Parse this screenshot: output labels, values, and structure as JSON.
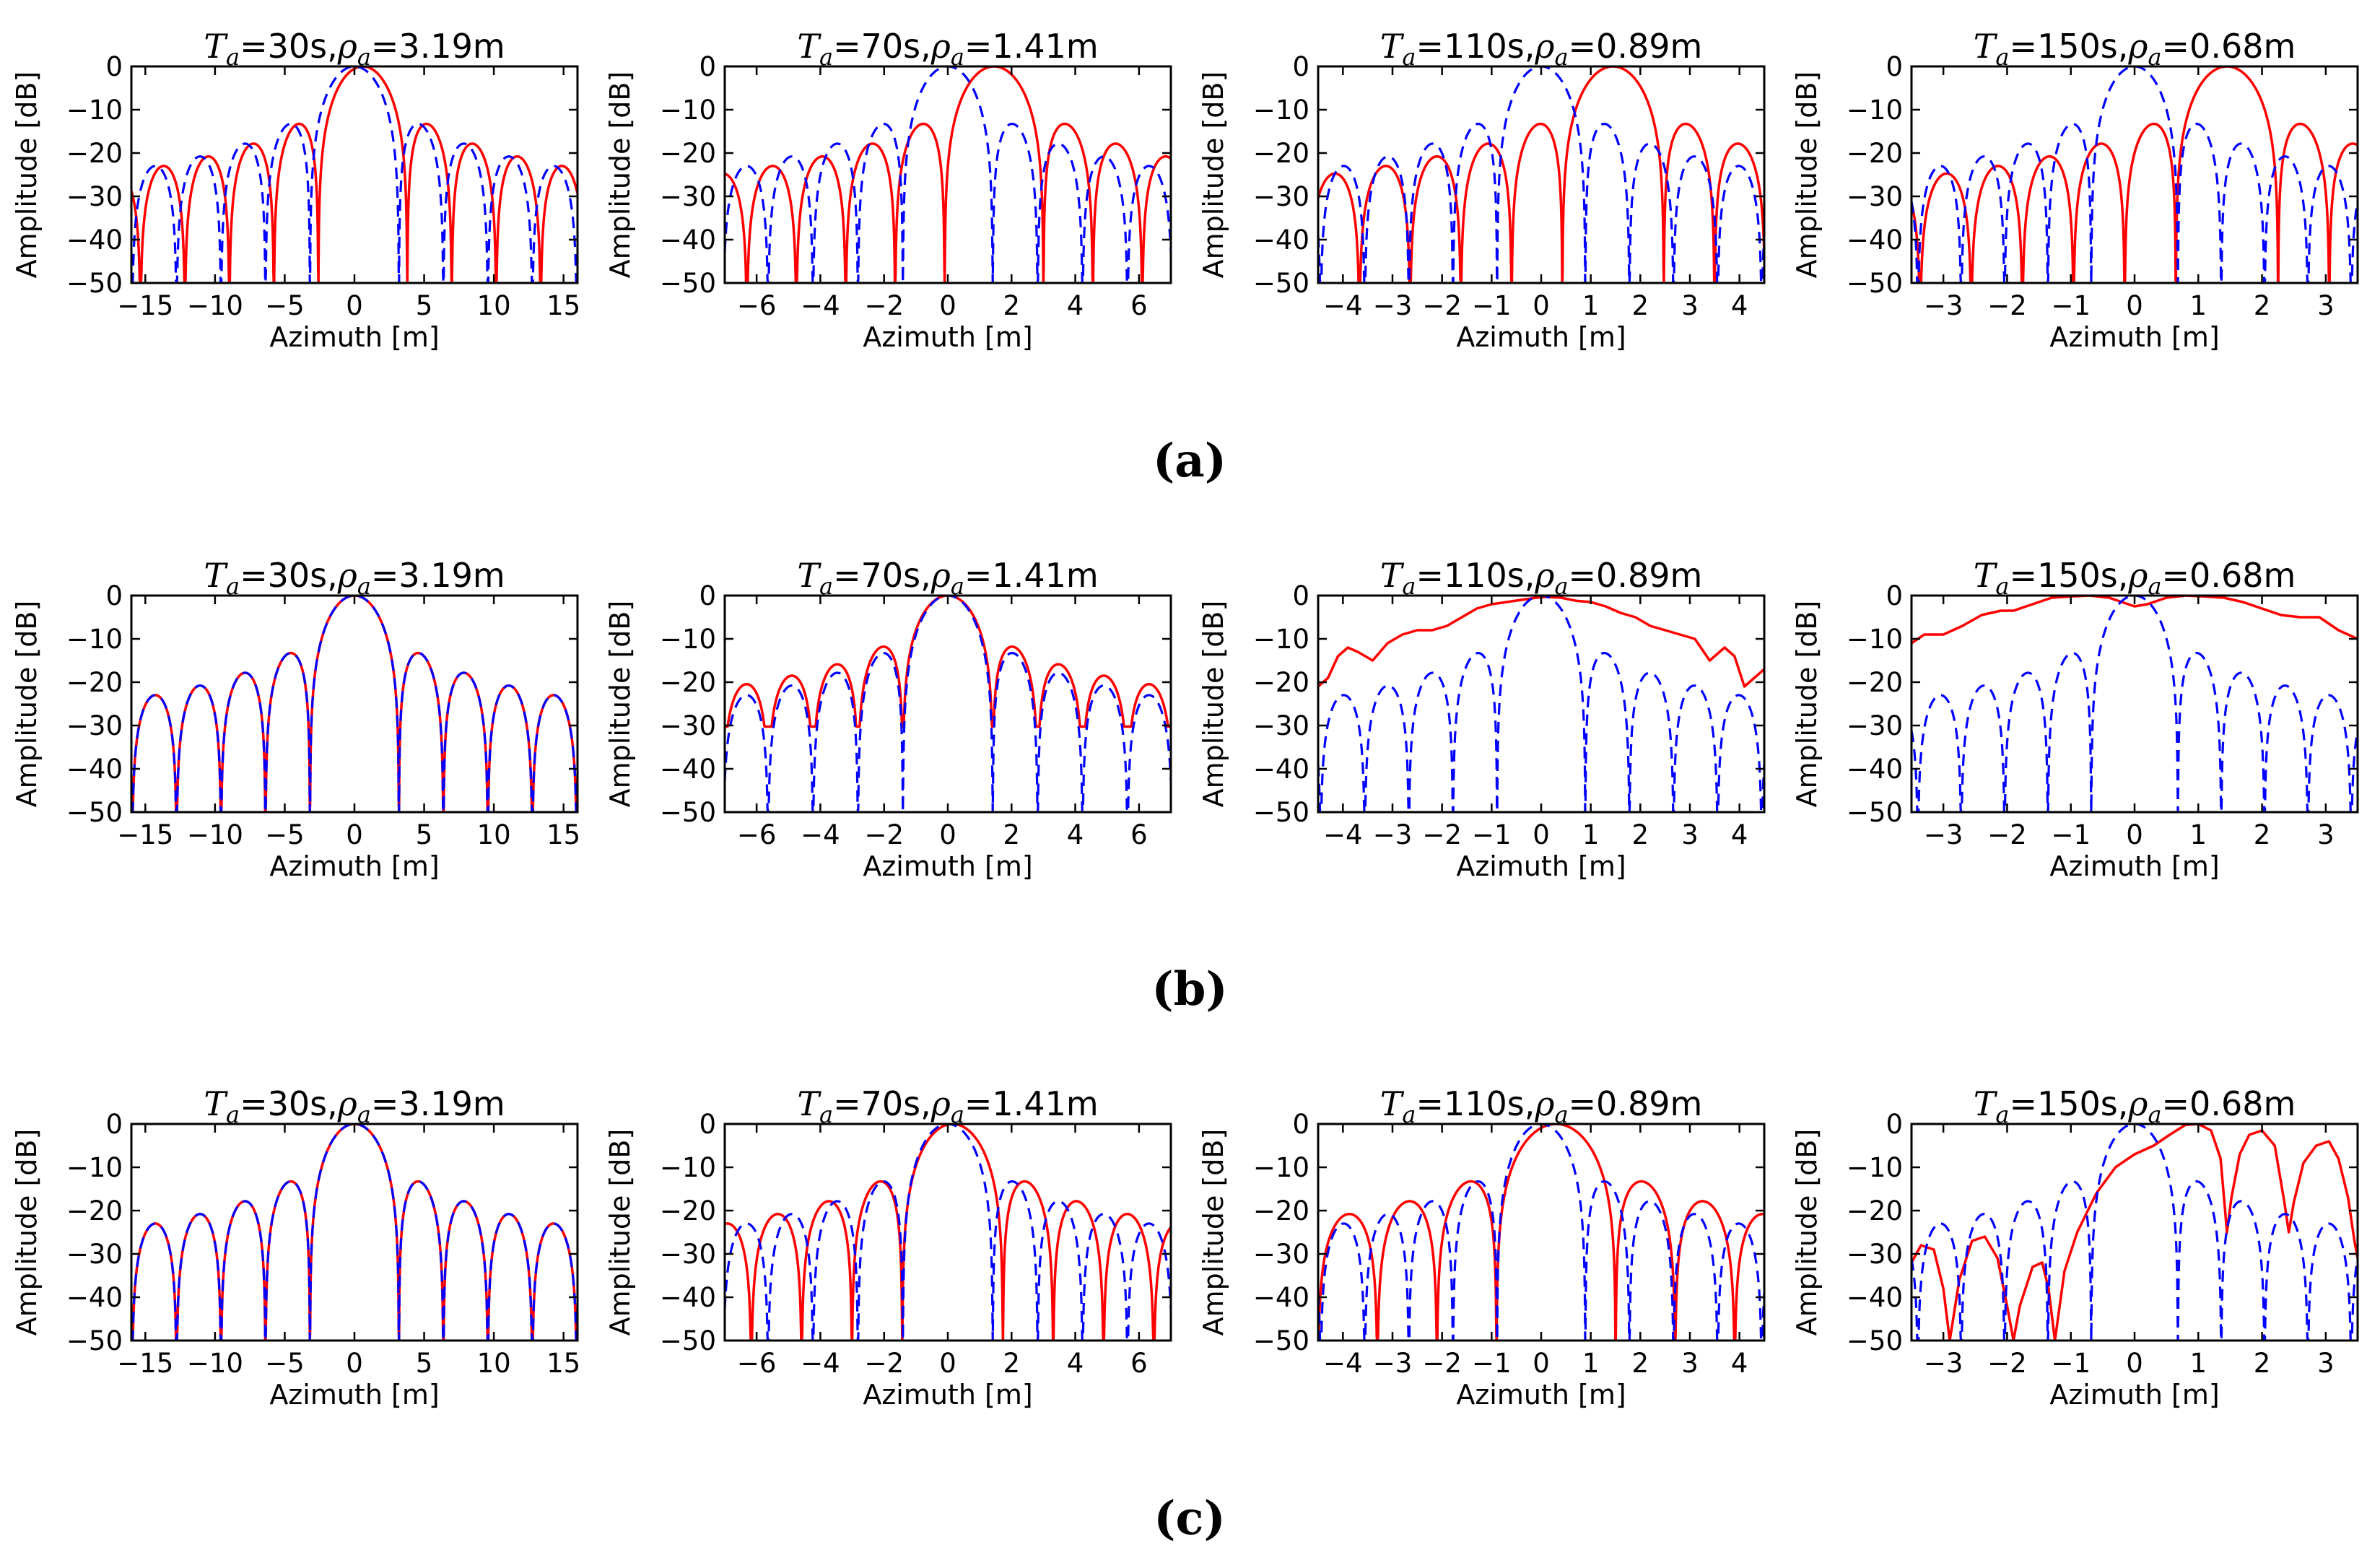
{
  "figure": {
    "row_labels": [
      "(a)",
      "(b)",
      "(c)"
    ],
    "title_symbols": {
      "T": "T",
      "T_sub": "a",
      "rho": "ρ",
      "rho_sub": "a"
    }
  },
  "colors": {
    "solid_series": "#ff0000",
    "dashed_series": "#0000ff",
    "axes": "#000000"
  },
  "chart_data": [
    {
      "panel": "a1",
      "row": "(a)",
      "type": "line",
      "title": "Ta=30s,ρa=3.19m",
      "Ta": "30s",
      "rho": "3.19m",
      "xlabel": "Azimuth [m]",
      "ylabel": "Amplitude [dB]",
      "xlim": [
        -16,
        16
      ],
      "ylim": [
        -50,
        0
      ],
      "xticks": [
        -15,
        -10,
        -5,
        0,
        5,
        10,
        15
      ],
      "yticks": [
        0,
        -10,
        -20,
        -30,
        -40,
        -50
      ],
      "series": [
        {
          "name": "solid-red",
          "style": "solid",
          "shift": 0.6,
          "scale": 1.0,
          "rho": 3.19,
          "floor": -50
        },
        {
          "name": "dashed-blue",
          "style": "dashed",
          "shift": 0.0,
          "scale": 1.0,
          "rho": 3.19,
          "floor": -50
        }
      ]
    },
    {
      "panel": "a2",
      "row": "(a)",
      "type": "line",
      "title": "Ta=70s,ρa=1.41m",
      "Ta": "70s",
      "rho": "1.41m",
      "xlabel": "Azimuth [m]",
      "ylabel": "Amplitude [dB]",
      "xlim": [
        -7,
        7
      ],
      "ylim": [
        -50,
        0
      ],
      "xticks": [
        -6,
        -4,
        -2,
        0,
        2,
        4,
        6
      ],
      "yticks": [
        0,
        -10,
        -20,
        -30,
        -40,
        -50
      ],
      "series": [
        {
          "name": "solid-red",
          "style": "solid",
          "shift": 1.45,
          "scale": 1.1,
          "rho": 1.41,
          "floor": -50
        },
        {
          "name": "dashed-blue",
          "style": "dashed",
          "shift": 0.0,
          "scale": 1.0,
          "rho": 1.41,
          "floor": -50
        }
      ]
    },
    {
      "panel": "a3",
      "row": "(a)",
      "type": "line",
      "title": "Ta=110s,ρa=0.89m",
      "Ta": "110s",
      "rho": "0.89m",
      "xlabel": "Azimuth [m]",
      "ylabel": "Amplitude [dB]",
      "xlim": [
        -4.5,
        4.5
      ],
      "ylim": [
        -50,
        0
      ],
      "xticks": [
        -4,
        -3,
        -2,
        -1,
        0,
        1,
        2,
        3,
        4
      ],
      "yticks": [
        0,
        -10,
        -20,
        -30,
        -40,
        -50
      ],
      "series": [
        {
          "name": "solid-red",
          "style": "solid",
          "shift": 1.45,
          "scale": 1.15,
          "rho": 0.89,
          "floor": -50
        },
        {
          "name": "dashed-blue",
          "style": "dashed",
          "shift": 0.0,
          "scale": 1.0,
          "rho": 0.89,
          "floor": -50
        }
      ]
    },
    {
      "panel": "a4",
      "row": "(a)",
      "type": "line",
      "title": "Ta=150s,ρa=0.68m",
      "Ta": "150s",
      "rho": "0.68m",
      "xlabel": "Azimuth [m]",
      "ylabel": "Amplitude [dB]",
      "xlim": [
        -3.5,
        3.5
      ],
      "ylim": [
        -50,
        0
      ],
      "xticks": [
        -3,
        -2,
        -1,
        0,
        1,
        2,
        3
      ],
      "yticks": [
        0,
        -10,
        -20,
        -30,
        -40,
        -50
      ],
      "series": [
        {
          "name": "solid-red",
          "style": "solid",
          "shift": 1.45,
          "scale": 1.18,
          "rho": 0.68,
          "floor": -50
        },
        {
          "name": "dashed-blue",
          "style": "dashed",
          "shift": 0.0,
          "scale": 1.0,
          "rho": 0.68,
          "floor": -50
        }
      ]
    },
    {
      "panel": "b1",
      "row": "(b)",
      "type": "line",
      "title": "Ta=30s,ρa=3.19m",
      "Ta": "30s",
      "rho": "3.19m",
      "xlabel": "Azimuth [m]",
      "ylabel": "Amplitude [dB]",
      "xlim": [
        -16,
        16
      ],
      "ylim": [
        -50,
        0
      ],
      "xticks": [
        -15,
        -10,
        -5,
        0,
        5,
        10,
        15
      ],
      "yticks": [
        0,
        -10,
        -20,
        -30,
        -40,
        -50
      ],
      "series": [
        {
          "name": "solid-red",
          "style": "solid",
          "shift": 0.0,
          "scale": 1.0,
          "rho": 3.19,
          "floor": -50
        },
        {
          "name": "dashed-blue",
          "style": "dashed",
          "shift": 0.0,
          "scale": 1.0,
          "rho": 3.19,
          "floor": -50
        }
      ]
    },
    {
      "panel": "b2",
      "row": "(b)",
      "type": "line",
      "title": "Ta=70s,ρa=1.41m",
      "Ta": "70s",
      "rho": "1.41m",
      "xlabel": "Azimuth [m]",
      "ylabel": "Amplitude [dB]",
      "xlim": [
        -7,
        7
      ],
      "ylim": [
        -50,
        0
      ],
      "xticks": [
        -6,
        -4,
        -2,
        0,
        2,
        4,
        6
      ],
      "yticks": [
        0,
        -10,
        -20,
        -30,
        -40,
        -50
      ],
      "series": [
        {
          "name": "solid-red",
          "style": "solid",
          "shift": 0.0,
          "scale": 1.0,
          "rho": 1.41,
          "floor": -34,
          "blend": 0.55
        },
        {
          "name": "dashed-blue",
          "style": "dashed",
          "shift": 0.0,
          "scale": 1.0,
          "rho": 1.41,
          "floor": -50
        }
      ]
    },
    {
      "panel": "b3",
      "row": "(b)",
      "type": "line",
      "title": "Ta=110s,ρa=0.89m",
      "Ta": "110s",
      "rho": "0.89m",
      "xlabel": "Azimuth [m]",
      "ylabel": "Amplitude [dB]",
      "xlim": [
        -4.5,
        4.5
      ],
      "ylim": [
        -50,
        0
      ],
      "xticks": [
        -4,
        -3,
        -2,
        -1,
        0,
        1,
        2,
        3,
        4
      ],
      "yticks": [
        0,
        -10,
        -20,
        -30,
        -40,
        -50
      ],
      "series": [
        {
          "name": "solid-red",
          "style": "solid",
          "points": [
            [
              -4.5,
              -21
            ],
            [
              -4.3,
              -19
            ],
            [
              -4.1,
              -14
            ],
            [
              -3.9,
              -12
            ],
            [
              -3.7,
              -13
            ],
            [
              -3.4,
              -15
            ],
            [
              -3.1,
              -11
            ],
            [
              -2.8,
              -9
            ],
            [
              -2.5,
              -8
            ],
            [
              -2.2,
              -8
            ],
            [
              -1.9,
              -7
            ],
            [
              -1.6,
              -5
            ],
            [
              -1.3,
              -3
            ],
            [
              -1.0,
              -2
            ],
            [
              -0.7,
              -1.5
            ],
            [
              -0.4,
              -1
            ],
            [
              -0.1,
              -0.5
            ],
            [
              0.1,
              -0.3
            ],
            [
              0.4,
              -0.5
            ],
            [
              0.7,
              -1.2
            ],
            [
              1.0,
              -1.5
            ],
            [
              1.3,
              -2.5
            ],
            [
              1.6,
              -4
            ],
            [
              1.9,
              -5
            ],
            [
              2.2,
              -7
            ],
            [
              2.5,
              -8
            ],
            [
              2.8,
              -9
            ],
            [
              3.1,
              -10
            ],
            [
              3.4,
              -15
            ],
            [
              3.7,
              -12
            ],
            [
              3.9,
              -14
            ],
            [
              4.1,
              -21
            ],
            [
              4.3,
              -19
            ],
            [
              4.5,
              -17
            ]
          ]
        },
        {
          "name": "dashed-blue",
          "style": "dashed",
          "shift": 0.0,
          "scale": 1.0,
          "rho": 0.89,
          "floor": -50
        }
      ]
    },
    {
      "panel": "b4",
      "row": "(b)",
      "type": "line",
      "title": "Ta=150s,ρa=0.68m",
      "Ta": "150s",
      "rho": "0.68m",
      "xlabel": "Azimuth [m]",
      "ylabel": "Amplitude [dB]",
      "xlim": [
        -3.5,
        3.5
      ],
      "ylim": [
        -50,
        0
      ],
      "xticks": [
        -3,
        -2,
        -1,
        0,
        1,
        2,
        3
      ],
      "yticks": [
        0,
        -10,
        -20,
        -30,
        -40,
        -50
      ],
      "series": [
        {
          "name": "solid-red",
          "style": "solid",
          "points": [
            [
              -3.5,
              -11
            ],
            [
              -3.3,
              -9
            ],
            [
              -3.0,
              -9
            ],
            [
              -2.7,
              -7
            ],
            [
              -2.4,
              -4.5
            ],
            [
              -2.1,
              -3.5
            ],
            [
              -1.9,
              -3.5
            ],
            [
              -1.6,
              -2
            ],
            [
              -1.3,
              -0.5
            ],
            [
              -1.0,
              -0.2
            ],
            [
              -0.7,
              0
            ],
            [
              -0.4,
              -0.5
            ],
            [
              -0.2,
              -1.5
            ],
            [
              0.0,
              -2.5
            ],
            [
              0.2,
              -2
            ],
            [
              0.5,
              -0.5
            ],
            [
              0.8,
              0
            ],
            [
              1.1,
              -0.2
            ],
            [
              1.4,
              -0.5
            ],
            [
              1.7,
              -1.5
            ],
            [
              2.0,
              -3
            ],
            [
              2.3,
              -4.5
            ],
            [
              2.6,
              -5
            ],
            [
              2.9,
              -5
            ],
            [
              3.2,
              -8
            ],
            [
              3.5,
              -10
            ]
          ]
        },
        {
          "name": "dashed-blue",
          "style": "dashed",
          "shift": 0.0,
          "scale": 1.0,
          "rho": 0.68,
          "floor": -50
        }
      ]
    },
    {
      "panel": "c1",
      "row": "(c)",
      "type": "line",
      "title": "Ta=30s,ρa=3.19m",
      "Ta": "30s",
      "rho": "3.19m",
      "xlabel": "Azimuth [m]",
      "ylabel": "Amplitude [dB]",
      "xlim": [
        -16,
        16
      ],
      "ylim": [
        -50,
        0
      ],
      "xticks": [
        -15,
        -10,
        -5,
        0,
        5,
        10,
        15
      ],
      "yticks": [
        0,
        -10,
        -20,
        -30,
        -40,
        -50
      ],
      "series": [
        {
          "name": "solid-red",
          "style": "solid",
          "shift": 0.0,
          "scale": 1.0,
          "rho": 3.19,
          "floor": -50
        },
        {
          "name": "dashed-blue",
          "style": "dashed",
          "shift": 0.0,
          "scale": 1.0,
          "rho": 3.19,
          "floor": -50
        }
      ]
    },
    {
      "panel": "c2",
      "row": "(c)",
      "type": "line",
      "title": "Ta=70s,ρa=1.41m",
      "Ta": "70s",
      "rho": "1.41m",
      "xlabel": "Azimuth [m]",
      "ylabel": "Amplitude [dB]",
      "xlim": [
        -7,
        7
      ],
      "ylim": [
        -50,
        0
      ],
      "xticks": [
        -6,
        -4,
        -2,
        0,
        2,
        4,
        6
      ],
      "yticks": [
        0,
        -10,
        -20,
        -30,
        -40,
        -50
      ],
      "series": [
        {
          "name": "solid-red",
          "style": "solid",
          "shift": 0.15,
          "scale": 1.12,
          "rho": 1.41,
          "floor": -50
        },
        {
          "name": "dashed-blue",
          "style": "dashed",
          "shift": 0.0,
          "scale": 1.0,
          "rho": 1.41,
          "floor": -50
        }
      ]
    },
    {
      "panel": "c3",
      "row": "(c)",
      "type": "line",
      "title": "Ta=110s,ρa=0.89m",
      "Ta": "110s",
      "rho": "0.89m",
      "xlabel": "Azimuth [m]",
      "ylabel": "Amplitude [dB]",
      "xlim": [
        -4.5,
        4.5
      ],
      "ylim": [
        -50,
        0
      ],
      "xticks": [
        -4,
        -3,
        -2,
        -1,
        0,
        1,
        2,
        3,
        4
      ],
      "yticks": [
        0,
        -10,
        -20,
        -30,
        -40,
        -50
      ],
      "series": [
        {
          "name": "solid-red",
          "style": "solid",
          "shift": 0.3,
          "scale": 1.35,
          "rho": 0.89,
          "floor": -50
        },
        {
          "name": "dashed-blue",
          "style": "dashed",
          "shift": 0.0,
          "scale": 1.0,
          "rho": 0.89,
          "floor": -50
        }
      ]
    },
    {
      "panel": "c4",
      "row": "(c)",
      "type": "line",
      "title": "Ta=150s,ρa=0.68m",
      "Ta": "150s",
      "rho": "0.68m",
      "xlabel": "Azimuth [m]",
      "ylabel": "Amplitude [dB]",
      "xlim": [
        -3.5,
        3.5
      ],
      "ylim": [
        -50,
        0
      ],
      "xticks": [
        -3,
        -2,
        -1,
        0,
        1,
        2,
        3
      ],
      "yticks": [
        0,
        -10,
        -20,
        -30,
        -40,
        -50
      ],
      "series": [
        {
          "name": "solid-red",
          "style": "solid",
          "points": [
            [
              -3.5,
              -32
            ],
            [
              -3.35,
              -28
            ],
            [
              -3.15,
              -29
            ],
            [
              -3.0,
              -38
            ],
            [
              -2.9,
              -50
            ],
            [
              -2.75,
              -36
            ],
            [
              -2.55,
              -27
            ],
            [
              -2.35,
              -26
            ],
            [
              -2.15,
              -31
            ],
            [
              -2.0,
              -42
            ],
            [
              -1.9,
              -50
            ],
            [
              -1.8,
              -42
            ],
            [
              -1.6,
              -33
            ],
            [
              -1.45,
              -32
            ],
            [
              -1.35,
              -38
            ],
            [
              -1.25,
              -50
            ],
            [
              -1.1,
              -34
            ],
            [
              -0.9,
              -25
            ],
            [
              -0.6,
              -16
            ],
            [
              -0.3,
              -10
            ],
            [
              0.0,
              -7
            ],
            [
              0.3,
              -5
            ],
            [
              0.55,
              -2.5
            ],
            [
              0.8,
              -0.2
            ],
            [
              1.0,
              0
            ],
            [
              1.2,
              -1.5
            ],
            [
              1.35,
              -8
            ],
            [
              1.45,
              -25
            ],
            [
              1.52,
              -17
            ],
            [
              1.65,
              -7
            ],
            [
              1.8,
              -2.5
            ],
            [
              2.0,
              -1.5
            ],
            [
              2.2,
              -5
            ],
            [
              2.35,
              -18
            ],
            [
              2.42,
              -25
            ],
            [
              2.5,
              -18
            ],
            [
              2.65,
              -9
            ],
            [
              2.85,
              -5
            ],
            [
              3.05,
              -4
            ],
            [
              3.2,
              -8
            ],
            [
              3.35,
              -17
            ],
            [
              3.45,
              -27
            ],
            [
              3.5,
              -31
            ]
          ]
        },
        {
          "name": "dashed-blue",
          "style": "dashed",
          "shift": 0.0,
          "scale": 1.0,
          "rho": 0.68,
          "floor": -50
        }
      ]
    }
  ]
}
